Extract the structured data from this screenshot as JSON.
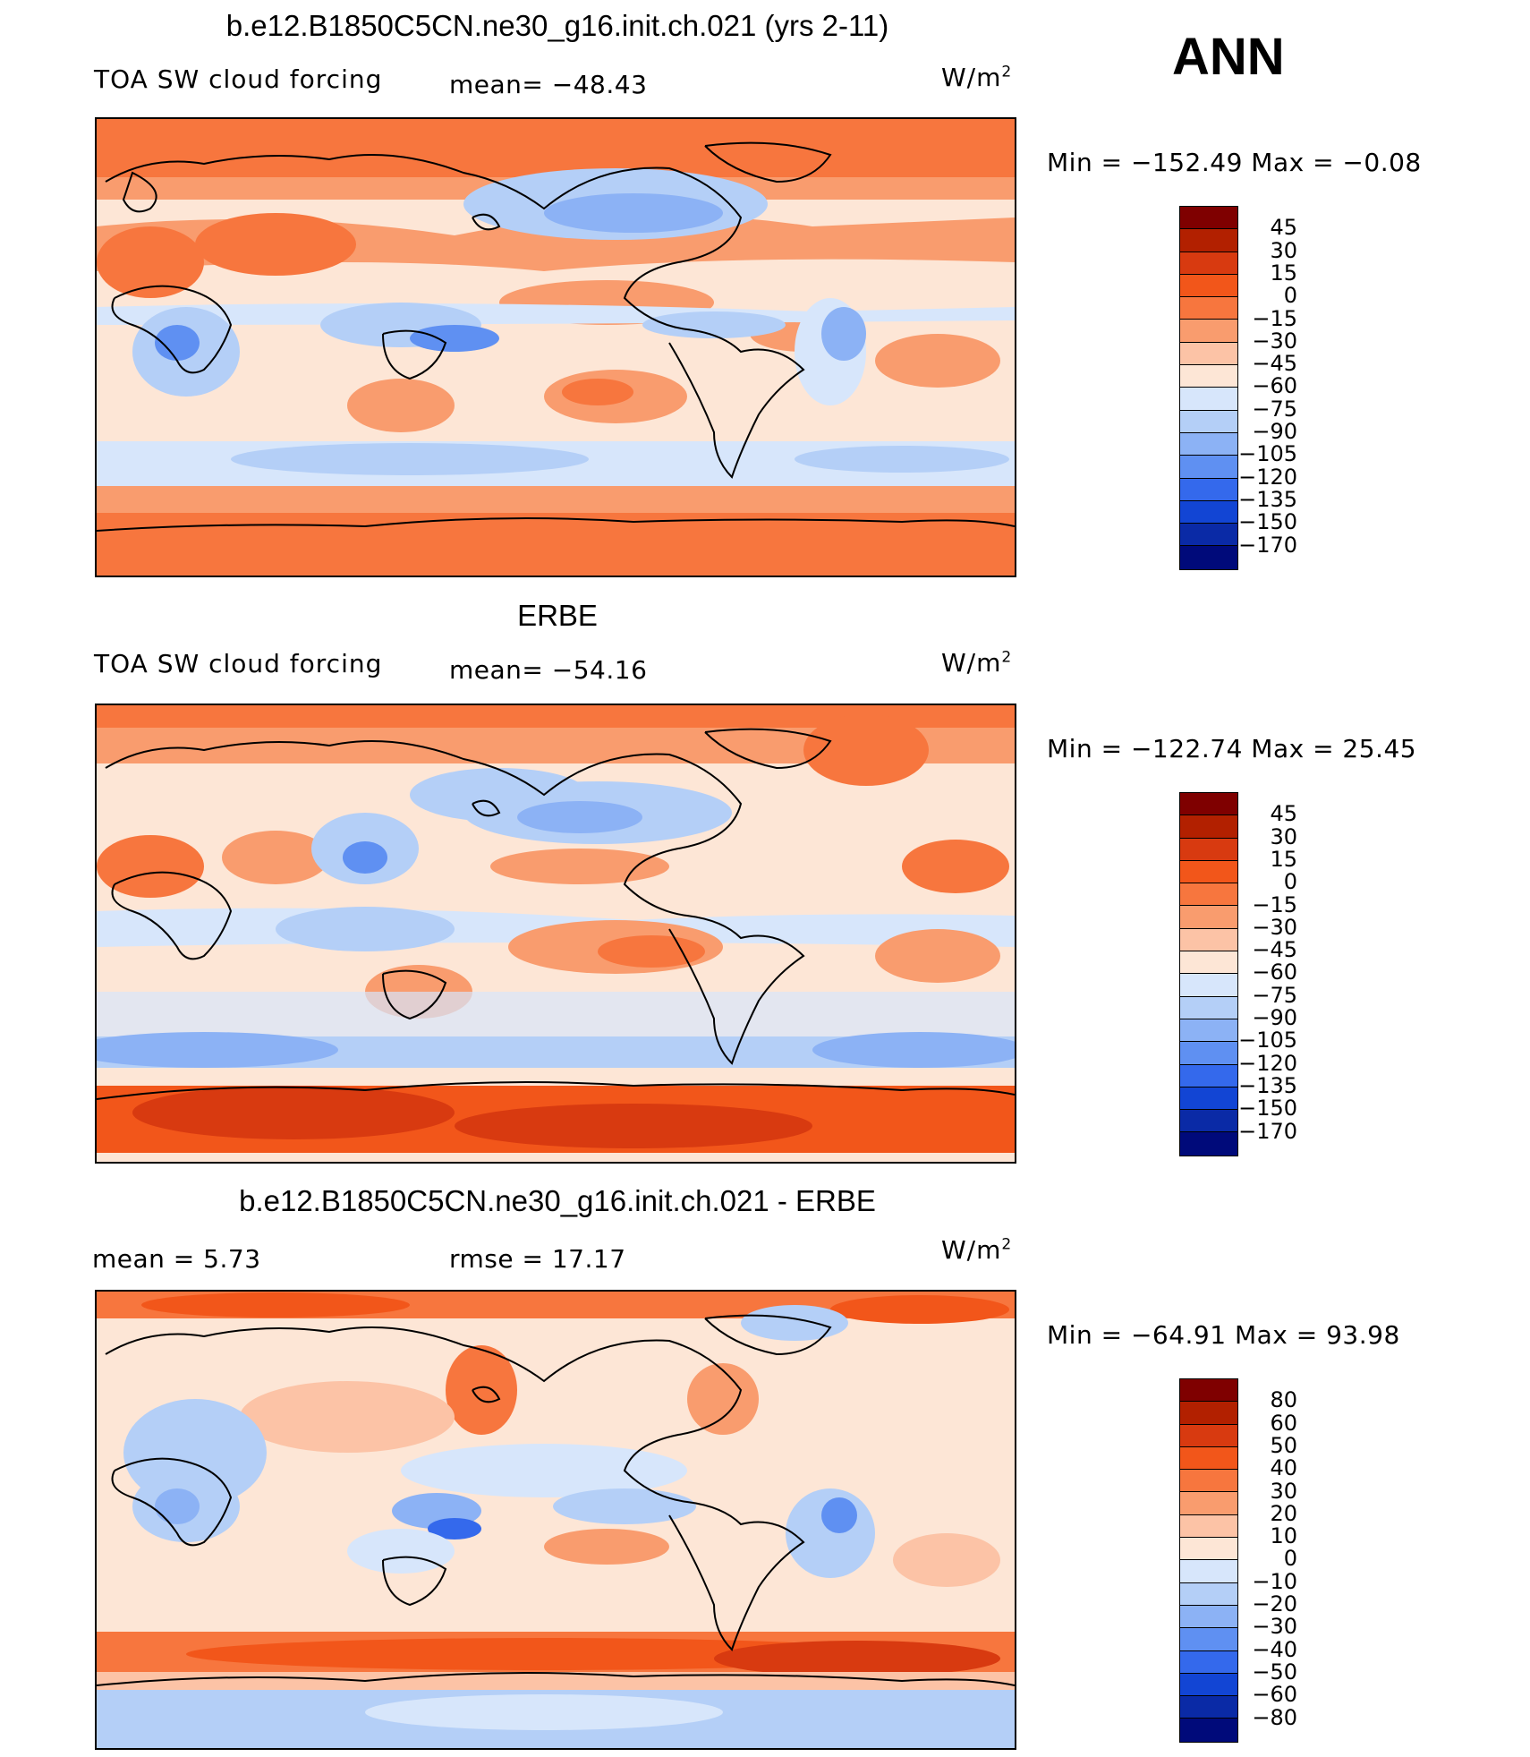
{
  "season": "ANN",
  "units_label": "W/m",
  "units_sup": "2",
  "panels": [
    {
      "title": "b.e12.B1850C5CN.ne30_g16.init.ch.021 (yrs 2-11)",
      "left_label": "TOA SW cloud forcing",
      "mid_label": "mean=  −48.43",
      "min_max": "Min  =  −152.49  Max  =    −0.08",
      "colorbar": {
        "levels": [
          "45",
          "30",
          "15",
          "0",
          "−15",
          "−30",
          "−45",
          "−60",
          "−75",
          "−90",
          "−105",
          "−120",
          "−135",
          "−150",
          "−170"
        ],
        "colors": [
          "#7f0000",
          "#b22000",
          "#d83a10",
          "#f2561a",
          "#f7763e",
          "#f99c6e",
          "#fcc3a6",
          "#fde6d6",
          "#d7e6fb",
          "#b4cff7",
          "#8cb2f5",
          "#5f90f2",
          "#3469ec",
          "#1245d4",
          "#0a2aa6",
          "#000a7a"
        ]
      },
      "chart_data": {
        "type": "heatmap",
        "title": "b.e12.B1850C5CN.ne30_g16.init.ch.021 (yrs 2-11)",
        "variable": "TOA SW cloud forcing",
        "units": "W/m2",
        "mean": -48.43,
        "min": -152.49,
        "max": -0.08,
        "contour_levels": [
          45,
          30,
          15,
          0,
          -15,
          -30,
          -45,
          -60,
          -75,
          -90,
          -105,
          -120,
          -135,
          -150,
          -170
        ]
      }
    },
    {
      "title": "ERBE",
      "left_label": "TOA SW cloud forcing",
      "mid_label": "mean=  −54.16",
      "min_max": "Min  =  −122.74  Max  =    25.45",
      "colorbar": {
        "levels": [
          "45",
          "30",
          "15",
          "0",
          "−15",
          "−30",
          "−45",
          "−60",
          "−75",
          "−90",
          "−105",
          "−120",
          "−135",
          "−150",
          "−170"
        ],
        "colors": [
          "#7f0000",
          "#b22000",
          "#d83a10",
          "#f2561a",
          "#f7763e",
          "#f99c6e",
          "#fcc3a6",
          "#fde6d6",
          "#d7e6fb",
          "#b4cff7",
          "#8cb2f5",
          "#5f90f2",
          "#3469ec",
          "#1245d4",
          "#0a2aa6",
          "#000a7a"
        ]
      },
      "chart_data": {
        "type": "heatmap",
        "title": "ERBE",
        "variable": "TOA SW cloud forcing",
        "units": "W/m2",
        "mean": -54.16,
        "min": -122.74,
        "max": 25.45,
        "contour_levels": [
          45,
          30,
          15,
          0,
          -15,
          -30,
          -45,
          -60,
          -75,
          -90,
          -105,
          -120,
          -135,
          -150,
          -170
        ]
      }
    },
    {
      "title": "b.e12.B1850C5CN.ne30_g16.init.ch.021 - ERBE",
      "left_label": "mean =     5.73",
      "mid_label": "rmse  =    17.17",
      "min_max": "Min  =  −64.91  Max  =    93.98",
      "colorbar": {
        "levels": [
          "80",
          "60",
          "50",
          "40",
          "30",
          "20",
          "10",
          "0",
          "−10",
          "−20",
          "−30",
          "−40",
          "−50",
          "−60",
          "−80"
        ],
        "colors": [
          "#7f0000",
          "#b22000",
          "#d83a10",
          "#f2561a",
          "#f7763e",
          "#f99c6e",
          "#fcc3a6",
          "#fde6d6",
          "#d7e6fb",
          "#b4cff7",
          "#8cb2f5",
          "#5f90f2",
          "#3469ec",
          "#1245d4",
          "#0a2aa6",
          "#000a7a"
        ]
      },
      "chart_data": {
        "type": "heatmap",
        "title": "b.e12.B1850C5CN.ne30_g16.init.ch.021 - ERBE",
        "units": "W/m2",
        "mean": 5.73,
        "rmse": 17.17,
        "min": -64.91,
        "max": 93.98,
        "contour_levels": [
          80,
          60,
          50,
          40,
          30,
          20,
          10,
          0,
          -10,
          -20,
          -30,
          -40,
          -50,
          -60,
          -80
        ]
      }
    }
  ]
}
